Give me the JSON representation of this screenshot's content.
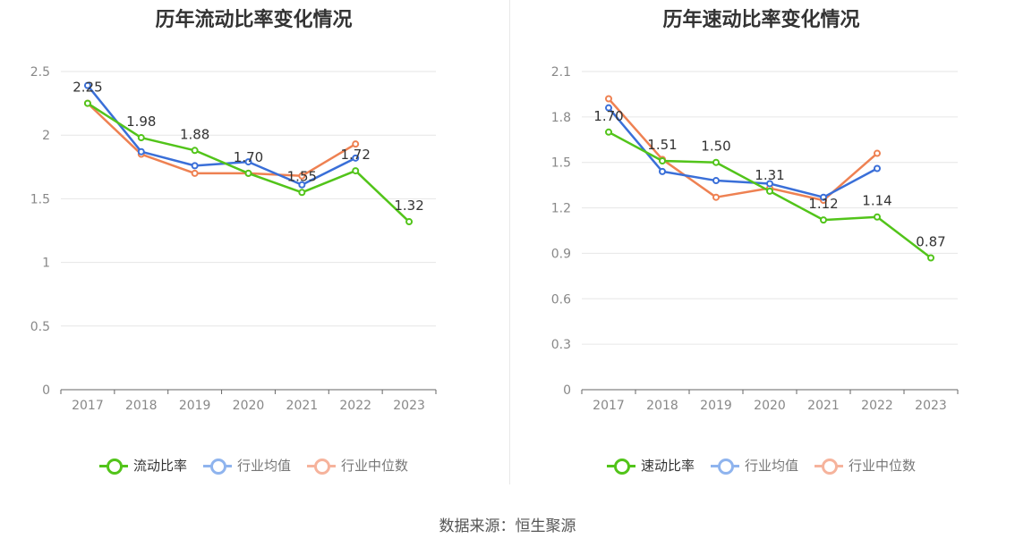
{
  "footer": {
    "source": "数据来源：恒生聚源"
  },
  "chart_data": [
    {
      "type": "line",
      "title": "历年流动比率变化情况",
      "categories": [
        "2017",
        "2018",
        "2019",
        "2020",
        "2021",
        "2022",
        "2023"
      ],
      "ylim": [
        0,
        2.5
      ],
      "yticks": [
        "0",
        "0.5",
        "1",
        "1.5",
        "2",
        "2.5"
      ],
      "ytick_values": [
        0,
        0.5,
        1,
        1.5,
        2,
        2.5
      ],
      "grid": true,
      "legend_position": "bottom",
      "series": [
        {
          "name": "流动比率",
          "color": "#52c41a",
          "values": [
            2.25,
            1.98,
            1.88,
            1.7,
            1.55,
            1.72,
            1.32
          ],
          "labels": [
            "2.25",
            "1.98",
            "1.88",
            "1.70",
            "1.55",
            "1.72",
            "1.32"
          ]
        },
        {
          "name": "行业均值",
          "color": "#3a6fd8",
          "values": [
            2.39,
            1.87,
            1.76,
            1.79,
            1.61,
            1.82,
            null
          ]
        },
        {
          "name": "行业中位数",
          "color": "#ee8152",
          "values": [
            2.25,
            1.85,
            1.7,
            1.7,
            1.68,
            1.93,
            null
          ]
        }
      ],
      "legend_colors": [
        "#52c41a",
        "#8fb4ee",
        "#f6b39c"
      ]
    },
    {
      "type": "line",
      "title": "历年速动比率变化情况",
      "categories": [
        "2017",
        "2018",
        "2019",
        "2020",
        "2021",
        "2022",
        "2023"
      ],
      "ylim": [
        0,
        2.1
      ],
      "yticks": [
        "0",
        "0.3",
        "0.6",
        "0.9",
        "1.2",
        "1.5",
        "1.8",
        "2.1"
      ],
      "ytick_values": [
        0,
        0.3,
        0.6,
        0.9,
        1.2,
        1.5,
        1.8,
        2.1
      ],
      "grid": true,
      "legend_position": "bottom",
      "series": [
        {
          "name": "速动比率",
          "color": "#52c41a",
          "values": [
            1.7,
            1.51,
            1.5,
            1.31,
            1.12,
            1.14,
            0.87
          ],
          "labels": [
            "1.70",
            "1.51",
            "1.50",
            "1.31",
            "1.12",
            "1.14",
            "0.87"
          ]
        },
        {
          "name": "行业均值",
          "color": "#3a6fd8",
          "values": [
            1.86,
            1.44,
            1.38,
            1.36,
            1.27,
            1.46,
            null
          ]
        },
        {
          "name": "行业中位数",
          "color": "#ee8152",
          "values": [
            1.92,
            1.52,
            1.27,
            1.33,
            1.25,
            1.56,
            null
          ]
        }
      ],
      "legend_colors": [
        "#52c41a",
        "#8fb4ee",
        "#f6b39c"
      ]
    }
  ]
}
